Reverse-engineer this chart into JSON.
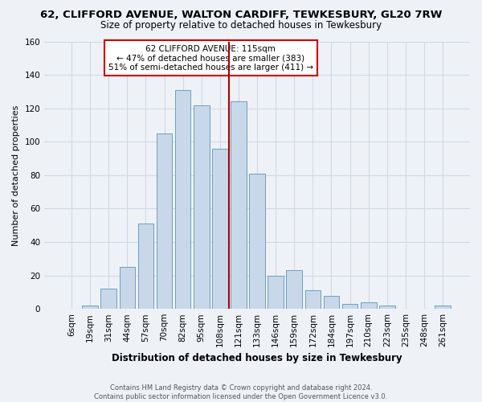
{
  "title": "62, CLIFFORD AVENUE, WALTON CARDIFF, TEWKESBURY, GL20 7RW",
  "subtitle": "Size of property relative to detached houses in Tewkesbury",
  "xlabel": "Distribution of detached houses by size in Tewkesbury",
  "ylabel": "Number of detached properties",
  "bar_labels": [
    "6sqm",
    "19sqm",
    "31sqm",
    "44sqm",
    "57sqm",
    "70sqm",
    "82sqm",
    "95sqm",
    "108sqm",
    "121sqm",
    "133sqm",
    "146sqm",
    "159sqm",
    "172sqm",
    "184sqm",
    "197sqm",
    "210sqm",
    "223sqm",
    "235sqm",
    "248sqm",
    "261sqm"
  ],
  "bar_values": [
    0,
    2,
    12,
    25,
    51,
    105,
    131,
    122,
    96,
    124,
    81,
    20,
    23,
    11,
    8,
    3,
    4,
    2,
    0,
    0,
    2
  ],
  "bar_color": "#c8d8ea",
  "bar_edge_color": "#6a9fc0",
  "property_line_color": "#aa0000",
  "annotation_text": "62 CLIFFORD AVENUE: 115sqm\n← 47% of detached houses are smaller (383)\n51% of semi-detached houses are larger (411) →",
  "annotation_box_color": "#ffffff",
  "annotation_box_edge": "#cc0000",
  "footer1": "Contains HM Land Registry data © Crown copyright and database right 2024.",
  "footer2": "Contains public sector information licensed under the Open Government Licence v3.0.",
  "ylim": [
    0,
    160
  ],
  "yticks": [
    0,
    20,
    40,
    60,
    80,
    100,
    120,
    140,
    160
  ],
  "bg_color": "#eef2f7",
  "grid_color": "#d0d8e4"
}
